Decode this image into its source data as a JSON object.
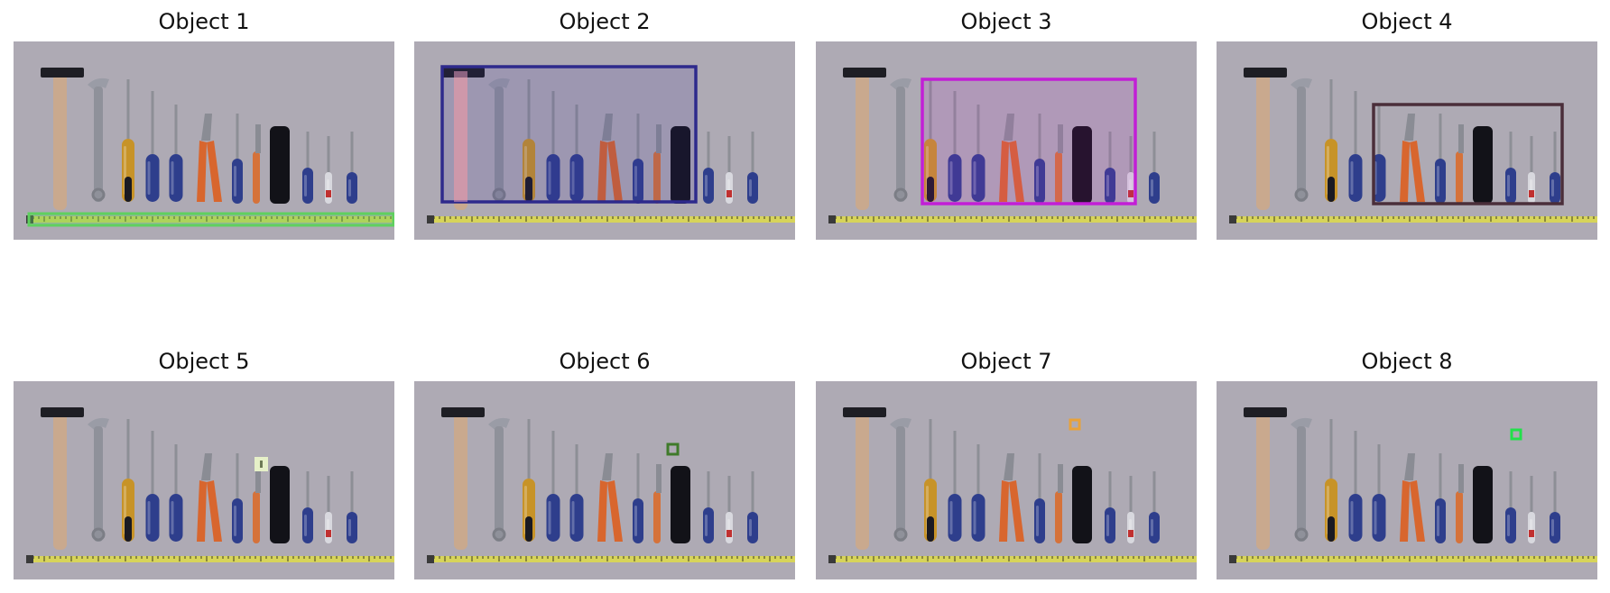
{
  "panels": [
    {
      "title": "Object 1",
      "highlight": {
        "kind": "box-fill",
        "color": "#5fd05f"
      }
    },
    {
      "title": "Object 2",
      "highlight": {
        "kind": "box",
        "color": "#2e2a8c"
      }
    },
    {
      "title": "Object 3",
      "highlight": {
        "kind": "box",
        "color": "#c21fd6"
      }
    },
    {
      "title": "Object 4",
      "highlight": {
        "kind": "box",
        "color": "#4a2e3a"
      }
    },
    {
      "title": "Object 5",
      "highlight": {
        "kind": "marker",
        "color": "#e6f0c8"
      }
    },
    {
      "title": "Object 6",
      "highlight": {
        "kind": "marker",
        "color": "#3f7a2a"
      }
    },
    {
      "title": "Object 7",
      "highlight": {
        "kind": "marker",
        "color": "#e8a23a"
      }
    },
    {
      "title": "Object 8",
      "highlight": {
        "kind": "marker",
        "color": "#22e04a"
      }
    }
  ]
}
